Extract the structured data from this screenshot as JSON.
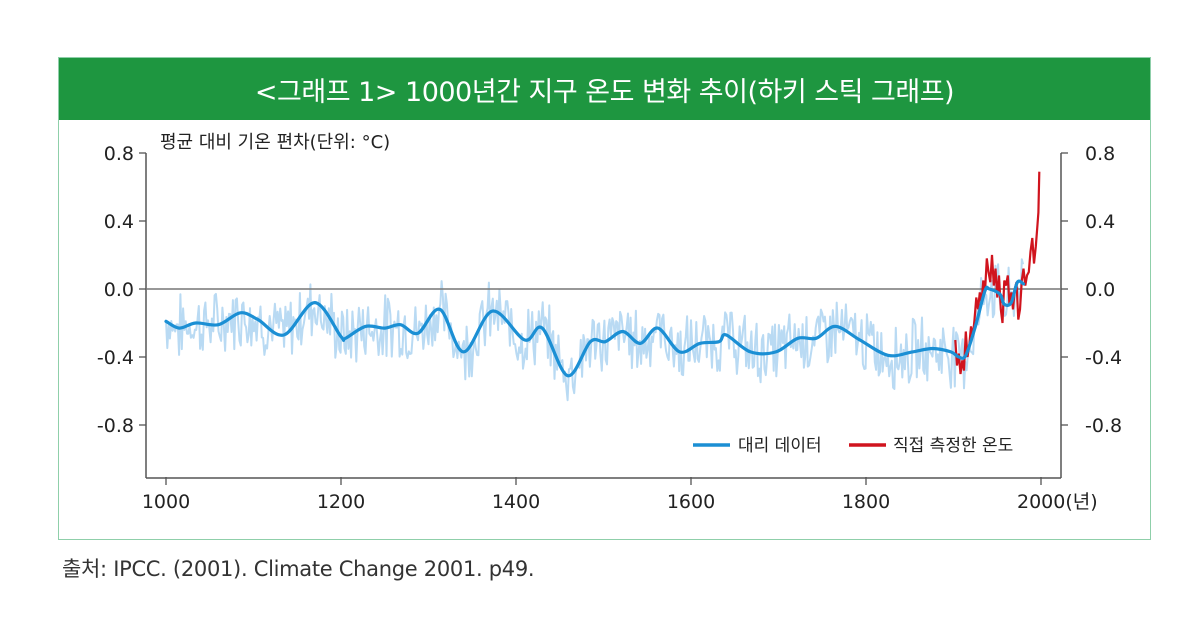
{
  "header": {
    "title": "<그래프 1> 1000년간 지구 온도 변화 추이(하키 스틱 그래프)"
  },
  "source": "출처: IPCC. (2001). Climate Change 2001. p49.",
  "colors": {
    "header_bg": "#1e9640",
    "frame_border": "#8fcfaa",
    "proxy_smooth": "#1b8fd4",
    "proxy_raw": "#b9daf3",
    "instrumental": "#d0141e",
    "axis": "#555555"
  },
  "chart_data": {
    "type": "line",
    "title": "<그래프 1> 1000년간 지구 온도 변화 추이(하키 스틱 그래프)",
    "ylabel": "평균 대비 기온 편차(단위: °C)",
    "xlabel": "(년)",
    "xlim": [
      1000,
      2000
    ],
    "ylim": [
      -1.1,
      0.8
    ],
    "x_ticks": [
      1000,
      1200,
      1400,
      1600,
      1800,
      2000
    ],
    "x_tick_labels": [
      "1000",
      "1200",
      "1400",
      "1600",
      "1800",
      "2000(년)"
    ],
    "y_ticks": [
      0.8,
      0.4,
      0.0,
      -0.4,
      -0.8
    ],
    "y_tick_labels": [
      "0.8",
      "0.4",
      "0.0",
      "-0.4",
      "-0.8"
    ],
    "right_axis_mirrors_left": true,
    "zero_line": true,
    "grid": false,
    "legend_position": "bottom-right",
    "legend": [
      {
        "label": "대리 데이터",
        "color": "#1b8fd4"
      },
      {
        "label": "직접 측정한 온도",
        "color": "#d0141e"
      }
    ],
    "series": [
      {
        "name": "대리 데이터",
        "style": "smoothed line with noisy annual proxy band",
        "x": [
          1000,
          1015,
          1034,
          1060,
          1085,
          1105,
          1135,
          1170,
          1200,
          1205,
          1228,
          1250,
          1268,
          1288,
          1313,
          1340,
          1373,
          1410,
          1430,
          1459,
          1485,
          1502,
          1522,
          1542,
          1562,
          1587,
          1610,
          1632,
          1640,
          1668,
          1697,
          1722,
          1743,
          1765,
          1793,
          1825,
          1853,
          1876,
          1897,
          1906,
          1914,
          1925,
          1936,
          1941,
          1953,
          1958,
          1966,
          1973,
          1980
        ],
        "y": [
          -0.19,
          -0.23,
          -0.2,
          -0.21,
          -0.14,
          -0.18,
          -0.27,
          -0.08,
          -0.28,
          -0.29,
          -0.22,
          -0.23,
          -0.21,
          -0.26,
          -0.12,
          -0.37,
          -0.13,
          -0.3,
          -0.23,
          -0.51,
          -0.31,
          -0.31,
          -0.25,
          -0.32,
          -0.23,
          -0.37,
          -0.32,
          -0.31,
          -0.27,
          -0.37,
          -0.37,
          -0.29,
          -0.29,
          -0.22,
          -0.3,
          -0.39,
          -0.37,
          -0.35,
          -0.37,
          -0.4,
          -0.39,
          -0.22,
          -0.01,
          0.0,
          -0.03,
          -0.09,
          -0.08,
          0.04,
          0.03
        ]
      },
      {
        "name": "직접 측정한 온도",
        "x": [
          1902,
          1904,
          1906,
          1908,
          1910,
          1912,
          1914,
          1916,
          1918,
          1920,
          1922,
          1924,
          1926,
          1928,
          1930,
          1932,
          1934,
          1936,
          1938,
          1940,
          1942,
          1944,
          1946,
          1948,
          1950,
          1952,
          1954,
          1956,
          1958,
          1960,
          1962,
          1964,
          1966,
          1968,
          1970,
          1972,
          1974,
          1976,
          1978,
          1980,
          1982,
          1984,
          1986,
          1988,
          1990,
          1992,
          1994,
          1996,
          1997,
          1998
        ],
        "y": [
          -0.3,
          -0.45,
          -0.38,
          -0.5,
          -0.42,
          -0.48,
          -0.25,
          -0.4,
          -0.33,
          -0.22,
          -0.28,
          -0.18,
          -0.05,
          -0.12,
          -0.02,
          -0.08,
          0.05,
          -0.02,
          0.18,
          0.1,
          0.04,
          0.2,
          0.02,
          0.12,
          -0.05,
          0.08,
          -0.12,
          -0.2,
          0.05,
          0.02,
          0.08,
          -0.1,
          -0.02,
          -0.12,
          0.0,
          0.04,
          -0.18,
          -0.12,
          0.05,
          0.12,
          0.02,
          0.08,
          0.1,
          0.22,
          0.3,
          0.15,
          0.25,
          0.38,
          0.45,
          0.69
        ]
      }
    ]
  }
}
